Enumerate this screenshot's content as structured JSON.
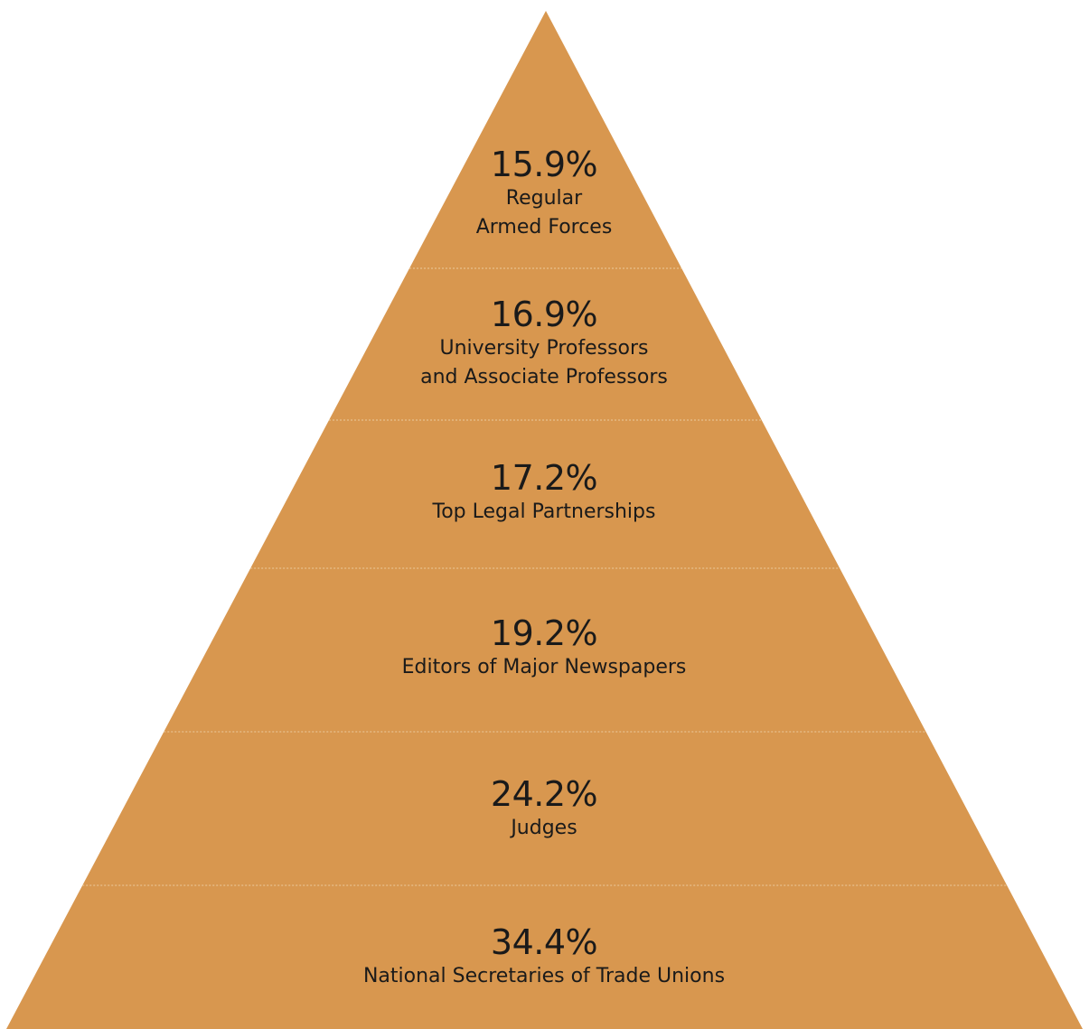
{
  "colors": {
    "fill": "#D8974F",
    "divider": "#ECCB9E",
    "text": "#1A1A1A"
  },
  "tiers": [
    {
      "value": "15.9%",
      "label": "Regular\nArmed Forces"
    },
    {
      "value": "16.9%",
      "label": "University Professors\nand Associate Professors"
    },
    {
      "value": "17.2%",
      "label": "Top Legal Partnerships"
    },
    {
      "value": "19.2%",
      "label": "Editors of Major Newspapers"
    },
    {
      "value": "24.2%",
      "label": "Judges"
    },
    {
      "value": "34.4%",
      "label": "National Secretaries of Trade Unions"
    }
  ]
}
